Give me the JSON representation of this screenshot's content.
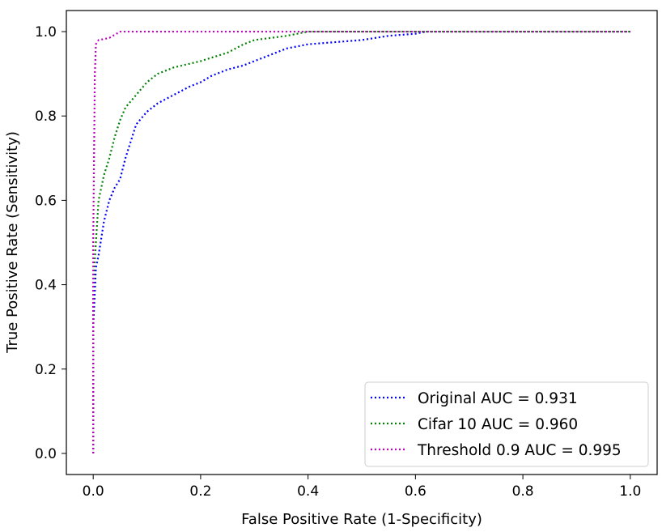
{
  "chart_data": {
    "type": "line",
    "xlabel": "False Positive Rate (1-Specificity)",
    "ylabel": "True Positive Rate (Sensitivity)",
    "xlim": [
      -0.05,
      1.05
    ],
    "ylim": [
      -0.05,
      1.05
    ],
    "xticks": [
      "0.0",
      "0.2",
      "0.4",
      "0.6",
      "0.8",
      "1.0"
    ],
    "yticks": [
      "0.0",
      "0.2",
      "0.4",
      "0.6",
      "0.8",
      "1.0"
    ],
    "legend_position": "bottom-right",
    "grid": false,
    "line_style": "dotted",
    "series": [
      {
        "name": "Original AUC = 0.931",
        "color": "#0000ff",
        "x": [
          0.0,
          0.0,
          0.005,
          0.01,
          0.02,
          0.03,
          0.04,
          0.05,
          0.06,
          0.07,
          0.08,
          0.1,
          0.12,
          0.15,
          0.18,
          0.2,
          0.22,
          0.25,
          0.28,
          0.3,
          0.33,
          0.36,
          0.4,
          0.45,
          0.5,
          0.55,
          0.6,
          0.62,
          1.0
        ],
        "y": [
          0.0,
          0.3,
          0.44,
          0.47,
          0.55,
          0.6,
          0.63,
          0.65,
          0.7,
          0.74,
          0.78,
          0.81,
          0.83,
          0.85,
          0.87,
          0.88,
          0.895,
          0.91,
          0.92,
          0.93,
          0.945,
          0.96,
          0.97,
          0.975,
          0.98,
          0.99,
          0.995,
          1.0,
          1.0
        ]
      },
      {
        "name": "Cifar 10 AUC = 0.960",
        "color": "#008000",
        "x": [
          0.0,
          0.0,
          0.005,
          0.01,
          0.02,
          0.03,
          0.04,
          0.05,
          0.06,
          0.08,
          0.1,
          0.12,
          0.15,
          0.2,
          0.25,
          0.28,
          0.3,
          0.33,
          0.36,
          0.38,
          0.4,
          1.0
        ],
        "y": [
          0.0,
          0.4,
          0.5,
          0.6,
          0.66,
          0.7,
          0.75,
          0.79,
          0.82,
          0.85,
          0.88,
          0.9,
          0.915,
          0.93,
          0.95,
          0.97,
          0.98,
          0.985,
          0.99,
          0.995,
          1.0,
          1.0
        ]
      },
      {
        "name": "Threshold 0.9 AUC = 0.995",
        "color": "#bf00bf",
        "x": [
          0.0,
          0.0,
          0.003,
          0.005,
          0.01,
          0.03,
          0.05,
          0.06,
          1.0
        ],
        "y": [
          0.0,
          0.5,
          0.9,
          0.97,
          0.98,
          0.985,
          1.0,
          1.0,
          1.0
        ]
      }
    ]
  }
}
